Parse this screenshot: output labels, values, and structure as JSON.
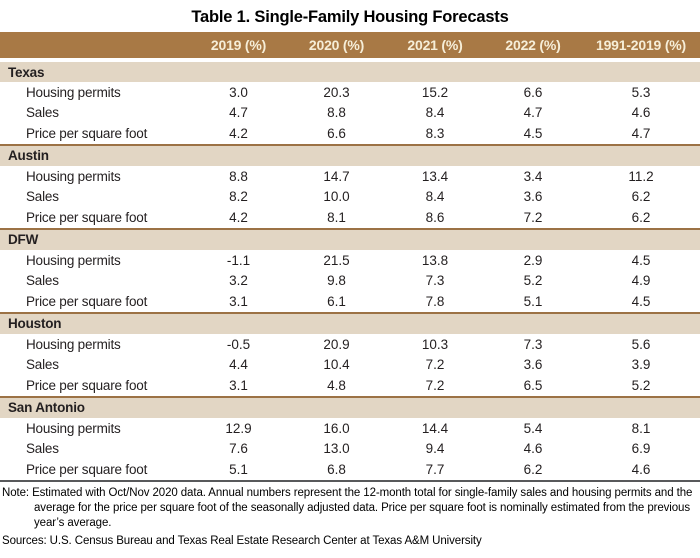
{
  "title": "Table 1. Single-Family Housing Forecasts",
  "note": "Note: Estimated with Oct/Nov 2020 data. Annual numbers represent the 12-month total for single-family sales and housing permits and the average for the price per square foot of the seasonally adjusted data. Price per square foot is nominally estimated from the previous year’s average.",
  "sources": "Sources: U.S. Census Bureau and Texas Real Estate Research Center at Texas A&M University",
  "colors": {
    "header_bg": "#a87945",
    "header_text": "#f6eed8",
    "section_band_bg": "#e2d6c4",
    "section_border": "#9c7245",
    "bottom_rule": "#58595b",
    "body_text": "#231f20"
  },
  "chart_data": {
    "type": "table",
    "title": "Table 1. Single-Family Housing Forecasts",
    "columns": [
      "2019 (%)",
      "2020 (%)",
      "2021 (%)",
      "2022 (%)",
      "1991-2019 (%)"
    ],
    "sections": [
      {
        "name": "Texas",
        "rows": [
          {
            "label": "Housing permits",
            "values": [
              "3.0",
              "20.3",
              "15.2",
              "6.6",
              "5.3"
            ]
          },
          {
            "label": "Sales",
            "values": [
              "4.7",
              "8.8",
              "8.4",
              "4.7",
              "4.6"
            ]
          },
          {
            "label": "Price per square foot",
            "values": [
              "4.2",
              "6.6",
              "8.3",
              "4.5",
              "4.7"
            ]
          }
        ]
      },
      {
        "name": "Austin",
        "rows": [
          {
            "label": "Housing permits",
            "values": [
              "8.8",
              "14.7",
              "13.4",
              "3.4",
              "11.2"
            ]
          },
          {
            "label": "Sales",
            "values": [
              "8.2",
              "10.0",
              "8.4",
              "3.6",
              "6.2"
            ]
          },
          {
            "label": "Price per square foot",
            "values": [
              "4.2",
              "8.1",
              "8.6",
              "7.2",
              "6.2"
            ]
          }
        ]
      },
      {
        "name": "DFW",
        "rows": [
          {
            "label": "Housing permits",
            "values": [
              "-1.1",
              "21.5",
              "13.8",
              "2.9",
              "4.5"
            ]
          },
          {
            "label": "Sales",
            "values": [
              "3.2",
              "9.8",
              "7.3",
              "5.2",
              "4.9"
            ]
          },
          {
            "label": "Price per square foot",
            "values": [
              "3.1",
              "6.1",
              "7.8",
              "5.1",
              "4.5"
            ]
          }
        ]
      },
      {
        "name": "Houston",
        "rows": [
          {
            "label": "Housing permits",
            "values": [
              "-0.5",
              "20.9",
              "10.3",
              "7.3",
              "5.6"
            ]
          },
          {
            "label": "Sales",
            "values": [
              "4.4",
              "10.4",
              "7.2",
              "3.6",
              "3.9"
            ]
          },
          {
            "label": "Price per square foot",
            "values": [
              "3.1",
              "4.8",
              "7.2",
              "6.5",
              "5.2"
            ]
          }
        ]
      },
      {
        "name": "San Antonio",
        "rows": [
          {
            "label": "Housing permits",
            "values": [
              "12.9",
              "16.0",
              "14.4",
              "5.4",
              "8.1"
            ]
          },
          {
            "label": "Sales",
            "values": [
              "7.6",
              "13.0",
              "9.4",
              "4.6",
              "6.9"
            ]
          },
          {
            "label": "Price per square foot",
            "values": [
              "5.1",
              "6.8",
              "7.7",
              "6.2",
              "4.6"
            ]
          }
        ]
      }
    ]
  }
}
